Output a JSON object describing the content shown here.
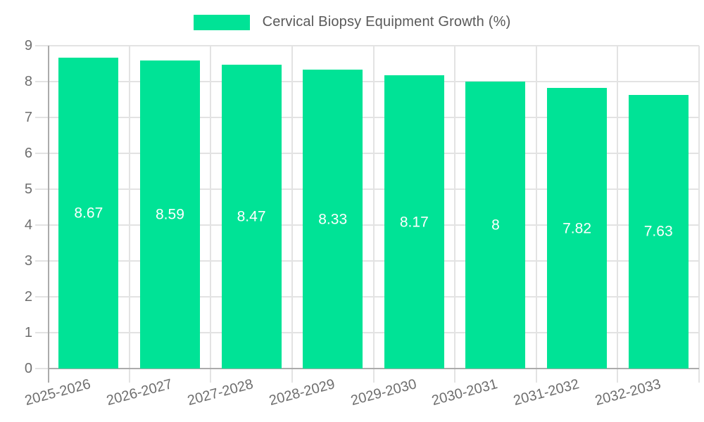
{
  "legend": {
    "series_label": "Cervical Biopsy Equipment Growth (%)",
    "swatch_color": "#00E396"
  },
  "chart_data": {
    "type": "bar",
    "title": "Cervical Biopsy Equipment Growth (%)",
    "categories": [
      "2025-2026",
      "2026-2027",
      "2027-2028",
      "2028-2029",
      "2029-2030",
      "2030-2031",
      "2031-2032",
      "2032-2033"
    ],
    "values": [
      8.67,
      8.59,
      8.47,
      8.33,
      8.17,
      8,
      7.82,
      7.63
    ],
    "value_labels": [
      "8.67",
      "8.59",
      "8.47",
      "8.33",
      "8.17",
      "8",
      "7.82",
      "7.63"
    ],
    "xlabel": "",
    "ylabel": "",
    "ylim": [
      0,
      9
    ],
    "yticks": [
      0,
      1,
      2,
      3,
      4,
      5,
      6,
      7,
      8,
      9
    ],
    "grid": true,
    "legend_position": "top-center",
    "bar_color": "#00E396",
    "value_label_color": "#FFFFFF",
    "x_label_rotation_deg": -15
  },
  "colors": {
    "accent_green": "#00E396",
    "grid_line": "#E3E3E3",
    "axis_line": "#ABABAB",
    "tick_label": "#6E6E6E",
    "legend_text": "#595959",
    "background": "#FFFFFF"
  }
}
